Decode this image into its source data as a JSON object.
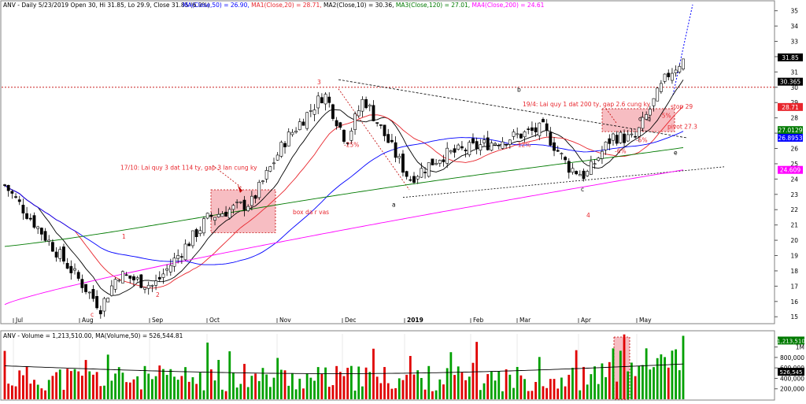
{
  "chart_data": [
    {
      "type": "candlestick",
      "title": "ANV - Daily 5/23/2019 Open 30, Hi 31.85, Lo 29.9, Close 31.85 (6.9%)",
      "legend": [
        {
          "label": "MA(Close,50) = 26.90,",
          "color": "#0000ff"
        },
        {
          "label": "MA1(Close,20) = 28.71,",
          "color": "#e8262d"
        },
        {
          "label": "MA2(Close,10) = 30.36,",
          "color": "#000000"
        },
        {
          "label": "MA3(Close,120) = 27.01,",
          "color": "#007a00"
        },
        {
          "label": "MA4(Close,200) = 24.61",
          "color": "#ff00ff"
        }
      ],
      "yaxis": {
        "ticks": [
          15,
          16,
          17,
          18,
          19,
          20,
          21,
          22,
          23,
          24,
          25,
          26,
          27,
          28,
          29,
          30,
          31,
          32,
          33,
          34,
          35
        ],
        "ylim": [
          14.6,
          35.6
        ]
      },
      "xaxis": {
        "ticks": [
          "Jul",
          "Aug",
          "Sep",
          "Oct",
          "Nov",
          "Dec",
          "2019",
          "Feb",
          "Mar",
          "Apr",
          "May"
        ]
      },
      "price_tags": [
        {
          "value": "31.85",
          "color": "#000000"
        },
        {
          "value": "30.365",
          "color": "#000000"
        },
        {
          "value": "28.71",
          "color": "#e8262d"
        },
        {
          "value": "27.0129",
          "color": "#007a00"
        },
        {
          "value": "26.8953",
          "color": "#0000ff"
        },
        {
          "value": "24.609",
          "color": "#ff00ff"
        }
      ],
      "annotations": [
        "17/10: Lai quy 3 dat 114 ty, gap 3 lan cung ky",
        "19/4: Lai quy 1 dat 200 ty, gap 2.6 cung ky",
        "box da r vas",
        "stop 29",
        "pivot 27.3",
        "-25%",
        "-12%",
        "-6%",
        "-5%",
        "-5%",
        "1",
        "2",
        "3",
        "4",
        "a",
        "b",
        "c",
        "d",
        "e",
        "c",
        "b"
      ],
      "close_series_anchors": [
        {
          "x": "Jul",
          "y": 23.6
        },
        {
          "x": "Aug",
          "y": 15.6
        },
        {
          "x": "Aug (mid)",
          "y": 17.8
        },
        {
          "x": "Sep",
          "y": 17.0
        },
        {
          "x": "Oct",
          "y": 21.5
        },
        {
          "x": "Oct (late)",
          "y": 22.5
        },
        {
          "x": "Nov",
          "y": 26.5
        },
        {
          "x": "Nov (late)",
          "y": 29.6
        },
        {
          "x": "Dec",
          "y": 26.5
        },
        {
          "x": "Dec (mid)",
          "y": 29.3
        },
        {
          "x": "Dec (late)",
          "y": 24.0
        },
        {
          "x": "2019",
          "y": 25.5
        },
        {
          "x": "Feb",
          "y": 26.6
        },
        {
          "x": "Mar",
          "y": 27.3
        },
        {
          "x": "Mar (late)",
          "y": 24.8
        },
        {
          "x": "Apr",
          "y": 24.2
        },
        {
          "x": "Apr (mid)",
          "y": 26.8
        },
        {
          "x": "May",
          "y": 26.6
        },
        {
          "x": "May (mid)",
          "y": 30.8
        },
        {
          "x": "5/23/2019",
          "y": 31.85
        }
      ]
    },
    {
      "type": "bar",
      "title": "ANV - Volume = 1,213,510.00, MA(Volume,50) = 526,544.81",
      "yaxis": {
        "ticks": [
          "200,000",
          "400,000",
          "600,000",
          "800,000",
          "1M"
        ],
        "ylim": [
          0,
          1250000
        ]
      },
      "price_tags": [
        {
          "value": "1,213,510",
          "color": "#007a00"
        },
        {
          "value": "526,545",
          "color": "#000000"
        }
      ],
      "volume_ma_level": 526545,
      "last_volume": 1213510
    }
  ]
}
